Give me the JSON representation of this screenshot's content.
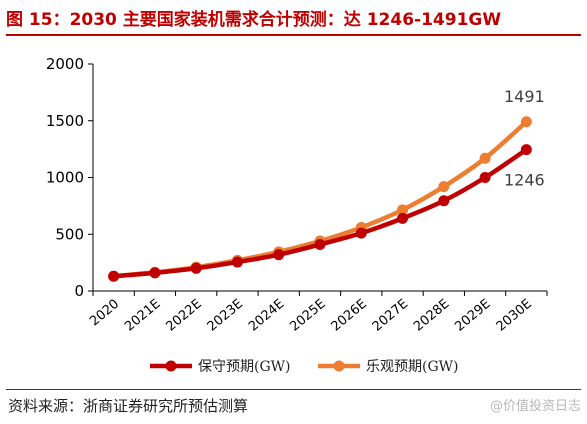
{
  "title": "图 15：2030 主要国家装机需求合计预测：达 1246-1491GW",
  "source": "资料来源：浙商证券研究所预估测算",
  "watermark": "@价值投资日志",
  "colors": {
    "title": "#c00000",
    "conservative": "#c00000",
    "optimistic": "#ed7d31"
  },
  "chart_data": {
    "type": "line",
    "categories": [
      "2020",
      "2021E",
      "2022E",
      "2023E",
      "2024E",
      "2025E",
      "2026E",
      "2027E",
      "2028E",
      "2029E",
      "2030E"
    ],
    "ylim": [
      0,
      2000
    ],
    "yticks": [
      "0",
      "500",
      "1000",
      "1500",
      "2000"
    ],
    "grid": false,
    "legend_position": "bottom",
    "series": [
      {
        "name": "保守预期(GW)",
        "color": "#c00000",
        "values": [
          130,
          160,
          200,
          255,
          320,
          410,
          510,
          640,
          795,
          1000,
          1246
        ]
      },
      {
        "name": "乐观预期(GW)",
        "color": "#ed7d31",
        "values": [
          130,
          165,
          210,
          270,
          345,
          440,
          560,
          715,
          920,
          1170,
          1491
        ]
      }
    ],
    "annotations": [
      {
        "text": "1491",
        "series": 1,
        "category": "2030E"
      },
      {
        "text": "1246",
        "series": 0,
        "category": "2030E"
      }
    ]
  }
}
